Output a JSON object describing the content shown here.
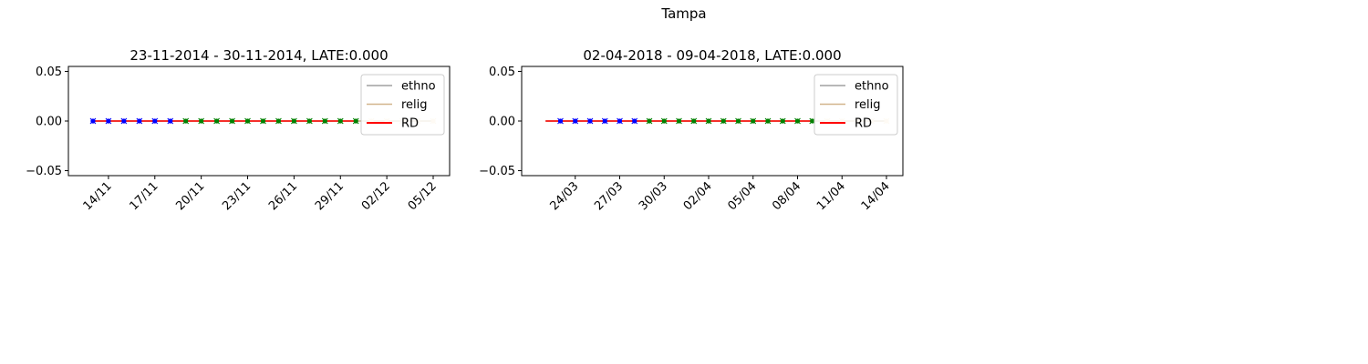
{
  "figure": {
    "suptitle": "Tampa"
  },
  "chart_data": [
    {
      "type": "line",
      "title": "23-11-2014 - 30-11-2014, LATE:0.000",
      "xlabel": "",
      "ylabel": "",
      "ylim": [
        -0.055,
        0.055
      ],
      "yticks": [
        -0.05,
        0.0,
        0.05
      ],
      "ytick_labels": [
        "−0.05",
        "0.00",
        "0.05"
      ],
      "xlim": [
        "2014-11-12",
        "2014-12-05"
      ],
      "xtick_labels": [
        "14/11",
        "17/11",
        "20/11",
        "23/11",
        "26/11",
        "29/11",
        "02/12",
        "05/12"
      ],
      "xtick_dates": [
        "2014-11-14",
        "2014-11-17",
        "2014-11-20",
        "2014-11-23",
        "2014-11-26",
        "2014-11-29",
        "2014-12-02",
        "2014-12-05"
      ],
      "legend": {
        "position": "upper-right",
        "entries": [
          {
            "name": "ethno",
            "color": "#a0a0a0"
          },
          {
            "name": "relig",
            "color": "#d2b48c"
          },
          {
            "name": "RD",
            "color": "#ff0000"
          }
        ]
      },
      "series": [
        {
          "name": "ethno",
          "color": "#a0a0a0",
          "x": [
            "2014-11-13",
            "2014-12-05"
          ],
          "y": [
            0,
            0
          ]
        },
        {
          "name": "relig",
          "color": "#d2b48c",
          "x": [
            "2014-11-13",
            "2014-12-05"
          ],
          "y": [
            0,
            0
          ]
        },
        {
          "name": "RD",
          "color": "#ff0000",
          "x": [
            "2014-11-13",
            "2014-11-30"
          ],
          "y": [
            0,
            0
          ]
        }
      ],
      "markers": [
        {
          "color": "#0000ff",
          "x": [
            "2014-11-13",
            "2014-11-14",
            "2014-11-15",
            "2014-11-16",
            "2014-11-17",
            "2014-11-18"
          ]
        },
        {
          "color": "#008000",
          "x": [
            "2014-11-19",
            "2014-11-20",
            "2014-11-21",
            "2014-11-22",
            "2014-11-23",
            "2014-11-24",
            "2014-11-25",
            "2014-11-26",
            "2014-11-27",
            "2014-11-28",
            "2014-11-29",
            "2014-11-30"
          ]
        },
        {
          "color": "#f5deb3",
          "x": [
            "2014-12-01",
            "2014-12-02",
            "2014-12-03",
            "2014-12-04",
            "2014-12-05"
          ]
        }
      ]
    },
    {
      "type": "line",
      "title": "02-04-2018 - 09-04-2018, LATE:0.000",
      "xlabel": "",
      "ylabel": "",
      "ylim": [
        -0.055,
        0.055
      ],
      "yticks": [
        -0.05,
        0.0,
        0.05
      ],
      "ytick_labels": [
        "−0.05",
        "0.00",
        "0.05"
      ],
      "xlim": [
        "2018-03-21",
        "2018-04-14"
      ],
      "xtick_labels": [
        "24/03",
        "27/03",
        "30/03",
        "02/04",
        "05/04",
        "08/04",
        "11/04",
        "14/04"
      ],
      "xtick_dates": [
        "2018-03-24",
        "2018-03-27",
        "2018-03-30",
        "2018-04-02",
        "2018-04-05",
        "2018-04-08",
        "2018-04-11",
        "2018-04-14"
      ],
      "legend": {
        "position": "upper-right",
        "entries": [
          {
            "name": "ethno",
            "color": "#a0a0a0"
          },
          {
            "name": "relig",
            "color": "#d2b48c"
          },
          {
            "name": "RD",
            "color": "#ff0000"
          }
        ]
      },
      "series": [
        {
          "name": "ethno",
          "color": "#a0a0a0",
          "x": [
            "2018-03-22",
            "2018-04-14"
          ],
          "y": [
            0,
            0
          ]
        },
        {
          "name": "relig",
          "color": "#d2b48c",
          "x": [
            "2018-03-22",
            "2018-04-14"
          ],
          "y": [
            0,
            0
          ]
        },
        {
          "name": "RD",
          "color": "#ff0000",
          "x": [
            "2018-03-22",
            "2018-04-09"
          ],
          "y": [
            0,
            0
          ]
        }
      ],
      "markers": [
        {
          "color": "#0000ff",
          "x": [
            "2018-03-23",
            "2018-03-24",
            "2018-03-25",
            "2018-03-26",
            "2018-03-27",
            "2018-03-28"
          ]
        },
        {
          "color": "#008000",
          "x": [
            "2018-03-29",
            "2018-03-30",
            "2018-03-31",
            "2018-04-01",
            "2018-04-02",
            "2018-04-03",
            "2018-04-04",
            "2018-04-05",
            "2018-04-06",
            "2018-04-07",
            "2018-04-08",
            "2018-04-09"
          ]
        },
        {
          "color": "#f5deb3",
          "x": [
            "2018-04-10",
            "2018-04-11",
            "2018-04-12",
            "2018-04-13",
            "2018-04-14"
          ]
        }
      ]
    }
  ]
}
